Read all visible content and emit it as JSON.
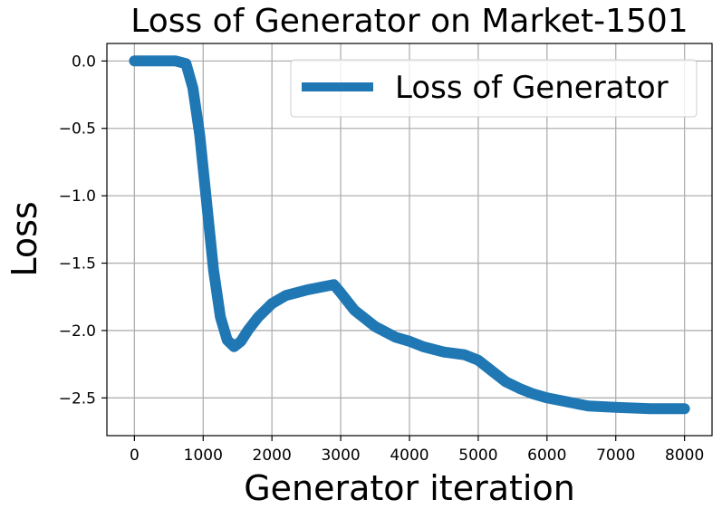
{
  "chart_data": {
    "type": "line",
    "title": "Loss of Generator on Market-1501",
    "xlabel": "Generator iteration",
    "ylabel": "Loss",
    "xlim": [
      -400,
      8400
    ],
    "ylim": [
      -2.78,
      0.13
    ],
    "x_ticks": [
      0,
      1000,
      2000,
      3000,
      4000,
      5000,
      6000,
      7000,
      8000
    ],
    "y_ticks": [
      0.0,
      -0.5,
      -1.0,
      -1.5,
      -2.0,
      -2.5
    ],
    "x_tick_labels": [
      "0",
      "1000",
      "2000",
      "3000",
      "4000",
      "5000",
      "6000",
      "7000",
      "8000"
    ],
    "y_tick_labels": [
      "0.0",
      "−0.5",
      "−1.0",
      "−1.5",
      "−2.0",
      "−2.5"
    ],
    "grid": true,
    "legend_position": "top-right",
    "color": "#1f77b4",
    "series": [
      {
        "name": "Loss of Generator",
        "x": [
          0,
          300,
          600,
          750,
          850,
          950,
          1050,
          1150,
          1250,
          1350,
          1450,
          1550,
          1650,
          1800,
          2000,
          2200,
          2500,
          2800,
          2900,
          3000,
          3200,
          3500,
          3800,
          4000,
          4200,
          4500,
          4800,
          5000,
          5200,
          5400,
          5600,
          5800,
          6000,
          6300,
          6600,
          7000,
          7500,
          8000
        ],
        "y": [
          0.0,
          0.0,
          0.0,
          -0.02,
          -0.2,
          -0.55,
          -1.05,
          -1.55,
          -1.9,
          -2.07,
          -2.12,
          -2.08,
          -2.0,
          -1.9,
          -1.8,
          -1.74,
          -1.7,
          -1.67,
          -1.66,
          -1.72,
          -1.85,
          -1.97,
          -2.05,
          -2.08,
          -2.12,
          -2.16,
          -2.18,
          -2.22,
          -2.3,
          -2.38,
          -2.43,
          -2.47,
          -2.5,
          -2.53,
          -2.56,
          -2.57,
          -2.58,
          -2.58
        ]
      }
    ]
  }
}
